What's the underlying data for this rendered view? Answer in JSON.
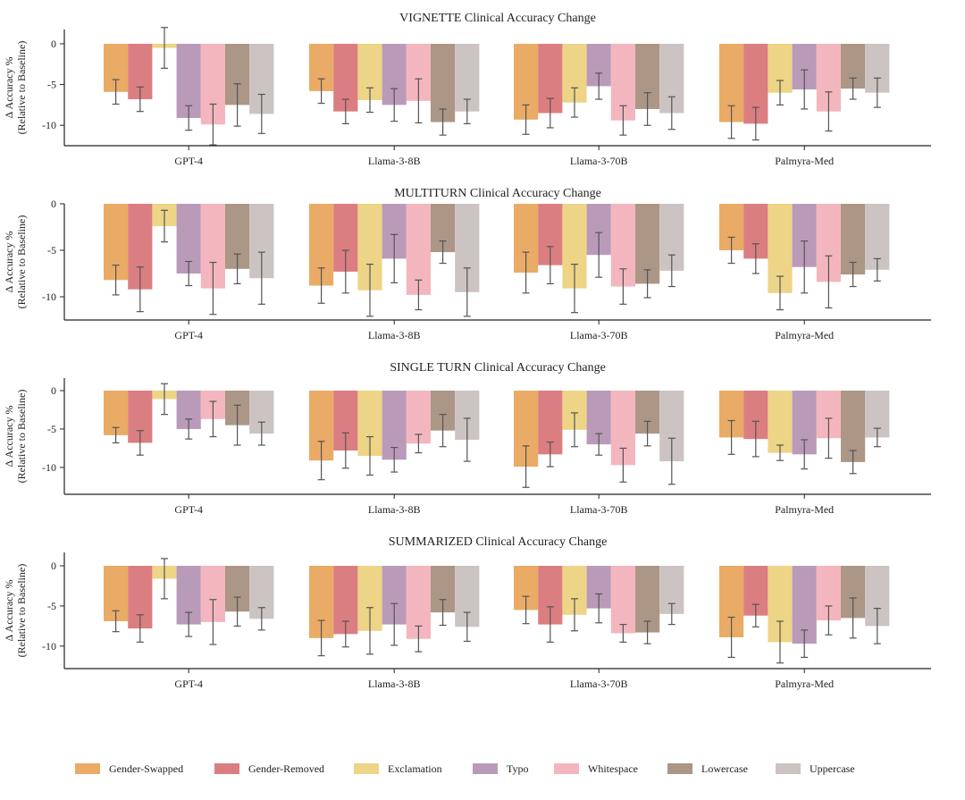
{
  "chart_data": [
    {
      "type": "bar",
      "title": "VIGNETTE Clinical Accuracy Change",
      "ylabel": "Δ Accuracy %",
      "ylabel2": "(Relative to Baseline)",
      "ylim": [
        -12.5,
        1.5
      ],
      "yticks": [
        0,
        -5,
        -10
      ],
      "categories": [
        "GPT-4",
        "Llama-3-8B",
        "Llama-3-70B",
        "Palmyra-Med"
      ],
      "series": [
        {
          "name": "Gender-Swapped",
          "values": [
            -5.9,
            -5.8,
            -9.3,
            -9.6
          ],
          "err": [
            1.5,
            1.5,
            1.8,
            2.0
          ]
        },
        {
          "name": "Gender-Removed",
          "values": [
            -6.8,
            -8.3,
            -8.5,
            -9.8
          ],
          "err": [
            1.5,
            1.5,
            1.8,
            2.0
          ]
        },
        {
          "name": "Exclamation",
          "values": [
            -0.5,
            -6.9,
            -7.2,
            -6.0
          ],
          "err": [
            2.5,
            1.5,
            1.8,
            1.5
          ]
        },
        {
          "name": "Typo",
          "values": [
            -9.1,
            -7.5,
            -5.2,
            -5.6
          ],
          "err": [
            1.5,
            2.0,
            1.6,
            2.4
          ]
        },
        {
          "name": "Whitespace",
          "values": [
            -9.9,
            -7.0,
            -9.4,
            -8.3
          ],
          "err": [
            2.5,
            2.7,
            1.8,
            2.4
          ]
        },
        {
          "name": "Lowercase",
          "values": [
            -7.5,
            -9.6,
            -8.0,
            -5.5
          ],
          "err": [
            2.6,
            1.6,
            2.0,
            1.3
          ]
        },
        {
          "name": "Uppercase",
          "values": [
            -8.6,
            -8.3,
            -8.5,
            -6.0
          ],
          "err": [
            2.4,
            1.5,
            2.0,
            1.8
          ]
        }
      ]
    },
    {
      "type": "bar",
      "title": "MULTITURN Clinical Accuracy Change",
      "ylabel": "Δ Accuracy %",
      "ylabel2": "(Relative to Baseline)",
      "ylim": [
        -12.5,
        0.8
      ],
      "yticks": [
        0,
        -5,
        -10
      ],
      "categories": [
        "GPT-4",
        "Llama-3-8B",
        "Llama-3-70B",
        "Palmyra-Med"
      ],
      "series": [
        {
          "name": "Gender-Swapped",
          "values": [
            -8.2,
            -8.8,
            -7.4,
            -5.0
          ],
          "err": [
            1.6,
            1.9,
            2.2,
            1.4
          ]
        },
        {
          "name": "Gender-Removed",
          "values": [
            -9.2,
            -7.3,
            -6.6,
            -5.9
          ],
          "err": [
            2.4,
            2.3,
            2.0,
            1.6
          ]
        },
        {
          "name": "Exclamation",
          "values": [
            -2.4,
            -9.3,
            -9.1,
            -9.6
          ],
          "err": [
            1.7,
            2.8,
            2.6,
            1.8
          ]
        },
        {
          "name": "Typo",
          "values": [
            -7.5,
            -5.9,
            -5.5,
            -6.8
          ],
          "err": [
            1.3,
            2.6,
            2.4,
            2.8
          ]
        },
        {
          "name": "Whitespace",
          "values": [
            -9.1,
            -9.8,
            -8.9,
            -8.4
          ],
          "err": [
            2.8,
            1.6,
            1.9,
            2.8
          ]
        },
        {
          "name": "Lowercase",
          "values": [
            -7.0,
            -5.2,
            -8.6,
            -7.6
          ],
          "err": [
            1.6,
            1.2,
            1.5,
            1.3
          ]
        },
        {
          "name": "Uppercase",
          "values": [
            -8.0,
            -9.5,
            -7.2,
            -7.1
          ],
          "err": [
            2.8,
            2.6,
            1.7,
            1.2
          ]
        }
      ]
    },
    {
      "type": "bar",
      "title": "SINGLE TURN Clinical Accuracy Change",
      "ylabel": "Δ Accuracy %",
      "ylabel2": "(Relative to Baseline)",
      "ylim": [
        -13.5,
        1.7
      ],
      "yticks": [
        0,
        -5,
        -10
      ],
      "categories": [
        "GPT-4",
        "Llama-3-8B",
        "Llama-3-70B",
        "Palmyra-Med"
      ],
      "series": [
        {
          "name": "Gender-Swapped",
          "values": [
            -5.8,
            -9.1,
            -9.9,
            -6.1
          ],
          "err": [
            1.0,
            2.5,
            2.7,
            2.2
          ]
        },
        {
          "name": "Gender-Removed",
          "values": [
            -6.8,
            -7.8,
            -8.3,
            -6.3
          ],
          "err": [
            1.6,
            2.3,
            1.6,
            2.3
          ]
        },
        {
          "name": "Exclamation",
          "values": [
            -1.1,
            -8.5,
            -5.1,
            -8.1
          ],
          "err": [
            2.0,
            2.5,
            2.2,
            1.0
          ]
        },
        {
          "name": "Typo",
          "values": [
            -5.0,
            -9.0,
            -7.0,
            -8.3
          ],
          "err": [
            1.3,
            1.6,
            1.4,
            1.9
          ]
        },
        {
          "name": "Whitespace",
          "values": [
            -3.7,
            -6.9,
            -9.7,
            -6.2
          ],
          "err": [
            2.3,
            1.2,
            2.2,
            2.6
          ]
        },
        {
          "name": "Lowercase",
          "values": [
            -4.5,
            -5.2,
            -5.6,
            -9.3
          ],
          "err": [
            2.6,
            2.1,
            1.6,
            1.5
          ]
        },
        {
          "name": "Uppercase",
          "values": [
            -5.6,
            -6.4,
            -9.2,
            -6.1
          ],
          "err": [
            1.5,
            2.8,
            3.0,
            1.2
          ]
        }
      ]
    },
    {
      "type": "bar",
      "title": "SUMMARIZED Clinical Accuracy Change",
      "ylabel": "Δ Accuracy %",
      "ylabel2": "(Relative to Baseline)",
      "ylim": [
        -12.8,
        1.6
      ],
      "yticks": [
        0,
        -5,
        -10
      ],
      "categories": [
        "GPT-4",
        "Llama-3-8B",
        "Llama-3-70B",
        "Palmyra-Med"
      ],
      "series": [
        {
          "name": "Gender-Swapped",
          "values": [
            -6.9,
            -9.0,
            -5.5,
            -8.9
          ],
          "err": [
            1.3,
            2.2,
            1.7,
            2.5
          ]
        },
        {
          "name": "Gender-Removed",
          "values": [
            -7.8,
            -8.5,
            -7.3,
            -6.2
          ],
          "err": [
            1.7,
            1.6,
            2.2,
            1.4
          ]
        },
        {
          "name": "Exclamation",
          "values": [
            -1.6,
            -8.1,
            -6.1,
            -9.5
          ],
          "err": [
            2.5,
            2.9,
            2.0,
            2.6
          ]
        },
        {
          "name": "Typo",
          "values": [
            -7.3,
            -7.3,
            -5.3,
            -9.7
          ],
          "err": [
            1.5,
            2.6,
            1.8,
            1.7
          ]
        },
        {
          "name": "Whitespace",
          "values": [
            -7.0,
            -9.1,
            -8.4,
            -6.8
          ],
          "err": [
            2.8,
            1.6,
            1.1,
            1.8
          ]
        },
        {
          "name": "Lowercase",
          "values": [
            -5.7,
            -5.8,
            -8.3,
            -6.5
          ],
          "err": [
            1.8,
            1.6,
            1.4,
            2.5
          ]
        },
        {
          "name": "Uppercase",
          "values": [
            -6.6,
            -7.6,
            -6.0,
            -7.5
          ],
          "err": [
            1.4,
            1.8,
            1.3,
            2.2
          ]
        }
      ]
    }
  ],
  "legend": [
    {
      "name": "Gender-Swapped",
      "color": "#e8a65e"
    },
    {
      "name": "Gender-Removed",
      "color": "#d9777a"
    },
    {
      "name": "Exclamation",
      "color": "#ecd280"
    },
    {
      "name": "Typo",
      "color": "#b695b5"
    },
    {
      "name": "Whitespace",
      "color": "#f3b2ba"
    },
    {
      "name": "Lowercase",
      "color": "#a89080"
    },
    {
      "name": "Uppercase",
      "color": "#c8c1bf"
    }
  ]
}
